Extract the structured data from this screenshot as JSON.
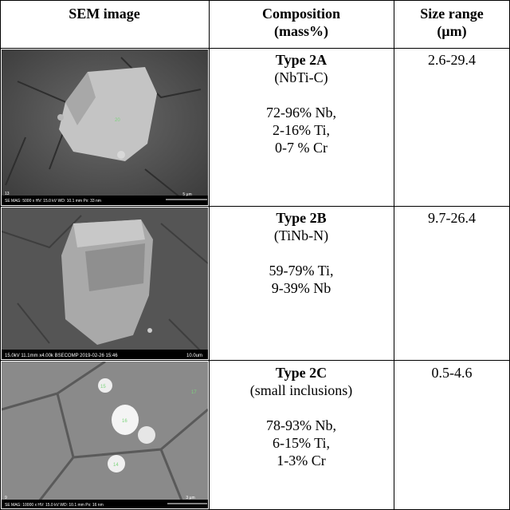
{
  "table": {
    "header": [
      [
        "SEM image"
      ],
      [
        "Composition",
        "(mass%)"
      ],
      [
        "Size range",
        "(µm)"
      ]
    ],
    "rows": [
      {
        "image": {
          "id": "13",
          "info": "SE MAG: 5000 x HV: 15.0 kV WD: 10.1 mm Px: 33 nm",
          "scale": "5 µm",
          "points": [
            "20"
          ]
        },
        "type": "Type 2A",
        "phase": "(NbTi-C)",
        "composition": [
          "72-96% Nb,",
          "2-16% Ti,",
          "0-7 % Cr"
        ],
        "size": "2.6-29.4"
      },
      {
        "image": {
          "info": "15.0kV 11.1mm x4.00k BSECOMP 2019-02-26 15:46",
          "scale": "10.0um"
        },
        "type": "Type 2B",
        "phase": "(TiNb-N)",
        "composition": [
          "59-79% Ti,",
          "9-39% Nb"
        ],
        "size": "9.7-26.4"
      },
      {
        "image": {
          "id": "9",
          "info": "SE MAG: 10000 x HV: 15.0 kV WD: 10.1 mm Px: 16 nm",
          "scale": "3 µm",
          "points": [
            "15",
            "16",
            "14",
            "17"
          ]
        },
        "type": "Type 2C",
        "phase": "(small inclusions)",
        "composition": [
          "78-93% Nb,",
          "6-15% Ti,",
          "1-3% Cr"
        ],
        "size": "0.5-4.6"
      }
    ]
  }
}
